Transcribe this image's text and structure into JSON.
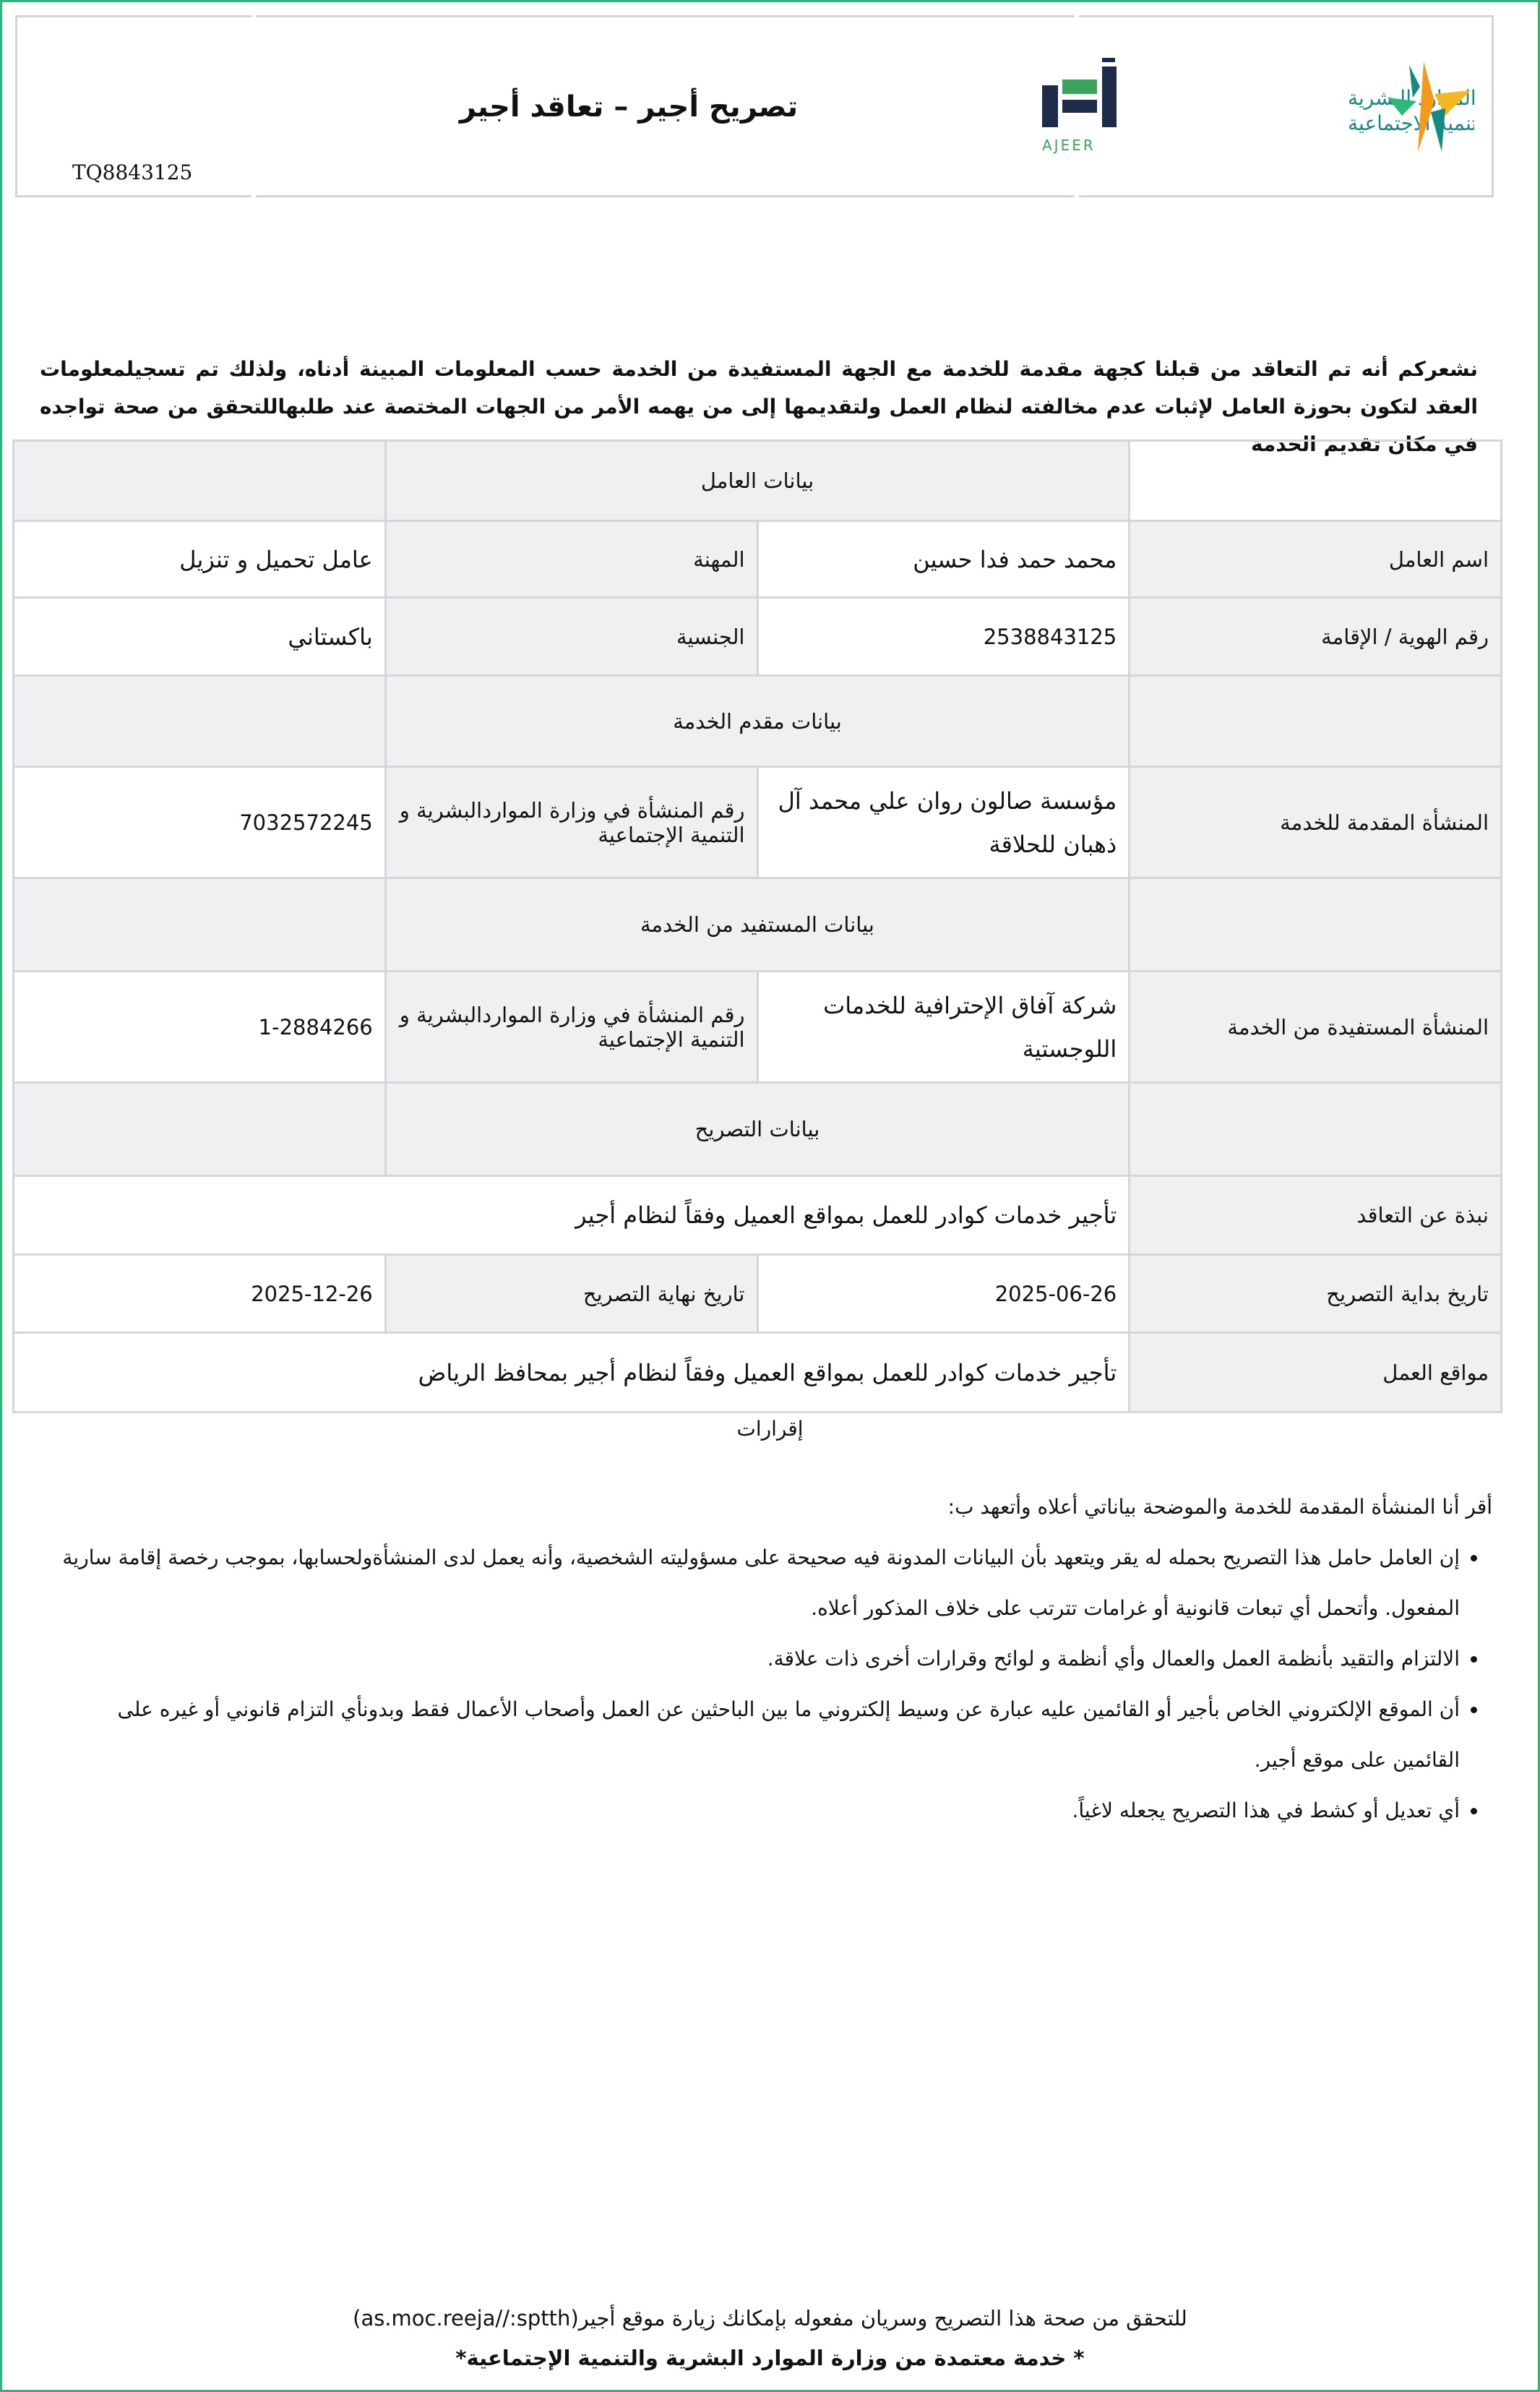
{
  "header": {
    "title": "تصريح أجير – تعاقد أجير",
    "reference": "TQ8843125",
    "logos": {
      "ajeer_ar": "أجير",
      "ajeer_en": "AJEER",
      "ministry": "الموارد البشرية والتنمية الاجتماعية"
    },
    "colors": {
      "border": "#2db87a",
      "ajeer_navy": "#1e2a4a",
      "green": "#3aa55a",
      "teal": "#148a83",
      "orange": "#f39a1e"
    }
  },
  "intro": "نشعركم أنه تم التعاقد من قبلنا كجهة مقدمة للخدمة مع الجهة المستفيدة من الخدمة حسب المعلومات المبينة أدناه، ولذلك تم تسجيلمعلومات العقد لتكون بحوزة العامل لإثبات عدم مخالفته لنظام العمل ولتقديمها إلى من يهمه الأمر من الجهات المختصة عند طلبهاللتحقق من صحة تواجده في مكان تقديم الخدمة",
  "worker": {
    "section": "بيانات العامل",
    "name_label": "اسم العامل",
    "name": "محمد حمد فدا حسين",
    "job_label": "المهنة",
    "job": "عامل تحميل و تنزيل",
    "id_label": "رقم الهوية / الإقامة",
    "id": "2538843125",
    "nationality_label": "الجنسية",
    "nationality": "باكستاني"
  },
  "provider": {
    "section": "بيانات مقدم الخدمة",
    "est_label": "المنشأة المقدمة للخدمة",
    "est": "مؤسسة صالون روان علي محمد آل ذهبان للحلاقة",
    "num_label": "رقم المنشأة في وزارة المواردالبشرية و التنمية الإجتماعية",
    "num": "7032572245"
  },
  "beneficiary": {
    "section": "بيانات المستفيد من الخدمة",
    "est_label": "المنشأة المستفيدة من الخدمة",
    "est": "شركة آفاق الإحترافية للخدمات اللوجستية",
    "num_label": "رقم المنشأة في وزارة المواردالبشرية و التنمية الإجتماعية",
    "num": "1-2884266"
  },
  "permit": {
    "section": "بيانات التصريح",
    "about_label": "نبذة عن التعاقد",
    "about": "تأجير خدمات كوادر للعمل بمواقع العميل وفقاً لنظام أجير",
    "start_label": "تاريخ بداية التصريح",
    "start": "2025-06-26",
    "end_label": "تاريخ نهاية التصريح",
    "end": "2025-12-26",
    "sites_label": "مواقع العمل",
    "sites": "تأجير خدمات كوادر للعمل بمواقع العميل وفقاً لنظام أجير بمحافظ الرياض"
  },
  "declarations": {
    "heading": "إقرارات",
    "intro": "أقر أنا المنشأة المقدمة للخدمة والموضحة بياناتي أعلاه وأتعهد ب:",
    "items": [
      "إن العامل حامل هذا التصريح بحمله له يقر ويتعهد بأن البيانات المدونة فيه صحيحة على مسؤوليته الشخصية، وأنه يعمل لدى المنشأةولحسابها، بموجب رخصة إقامة سارية المفعول. وأتحمل أي تبعات قانونية أو غرامات تترتب على خلاف المذكور أعلاه.",
      "الالتزام والتقيد بأنظمة العمل والعمال وأي أنظمة و لوائح وقرارات أخرى ذات علاقة.",
      "أن الموقع الإلكتروني الخاص بأجير أو القائمين عليه عبارة عن وسيط إلكتروني ما بين الباحثين عن العمل وأصحاب الأعمال فقط وبدونأي التزام قانوني أو غيره على القائمين على موقع أجير.",
      "أي تعديل أو كشط في هذا التصريح يجعله لاغياً."
    ]
  },
  "footer": {
    "verify": "للتحقق من صحة هذا التصريح وسريان مفعوله بإمكانك زيارة موقع أجير(as.moc.reeja//:sptth)",
    "approved": "* خدمة معتمدة من وزارة الموارد البشرية والتنمية الإجتماعية*"
  }
}
